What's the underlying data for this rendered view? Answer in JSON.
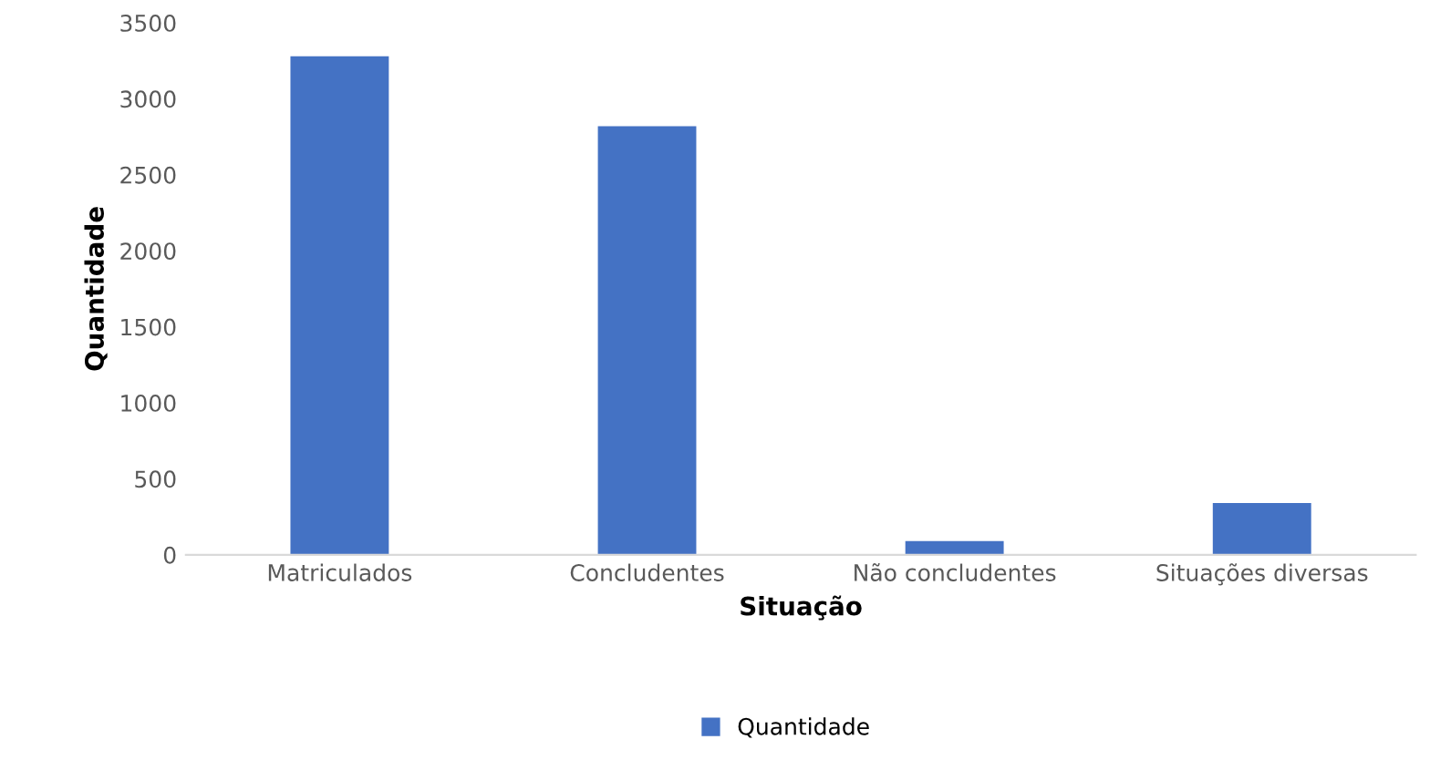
{
  "chart_data": {
    "type": "bar",
    "xlabel": "Situação",
    "ylabel": "Quantidade",
    "categories": [
      "Matriculados",
      "Concludentes",
      "Não concludentes",
      "Situações diversas"
    ],
    "series": [
      {
        "name": "Quantidade",
        "color": "#4472c4",
        "values": [
          3280,
          2820,
          90,
          340
        ]
      }
    ],
    "ylim": [
      0,
      3500
    ],
    "yticks": [
      0,
      500,
      1000,
      1500,
      2000,
      2500,
      3000,
      3500
    ],
    "grid": false,
    "legend": "bottom"
  }
}
